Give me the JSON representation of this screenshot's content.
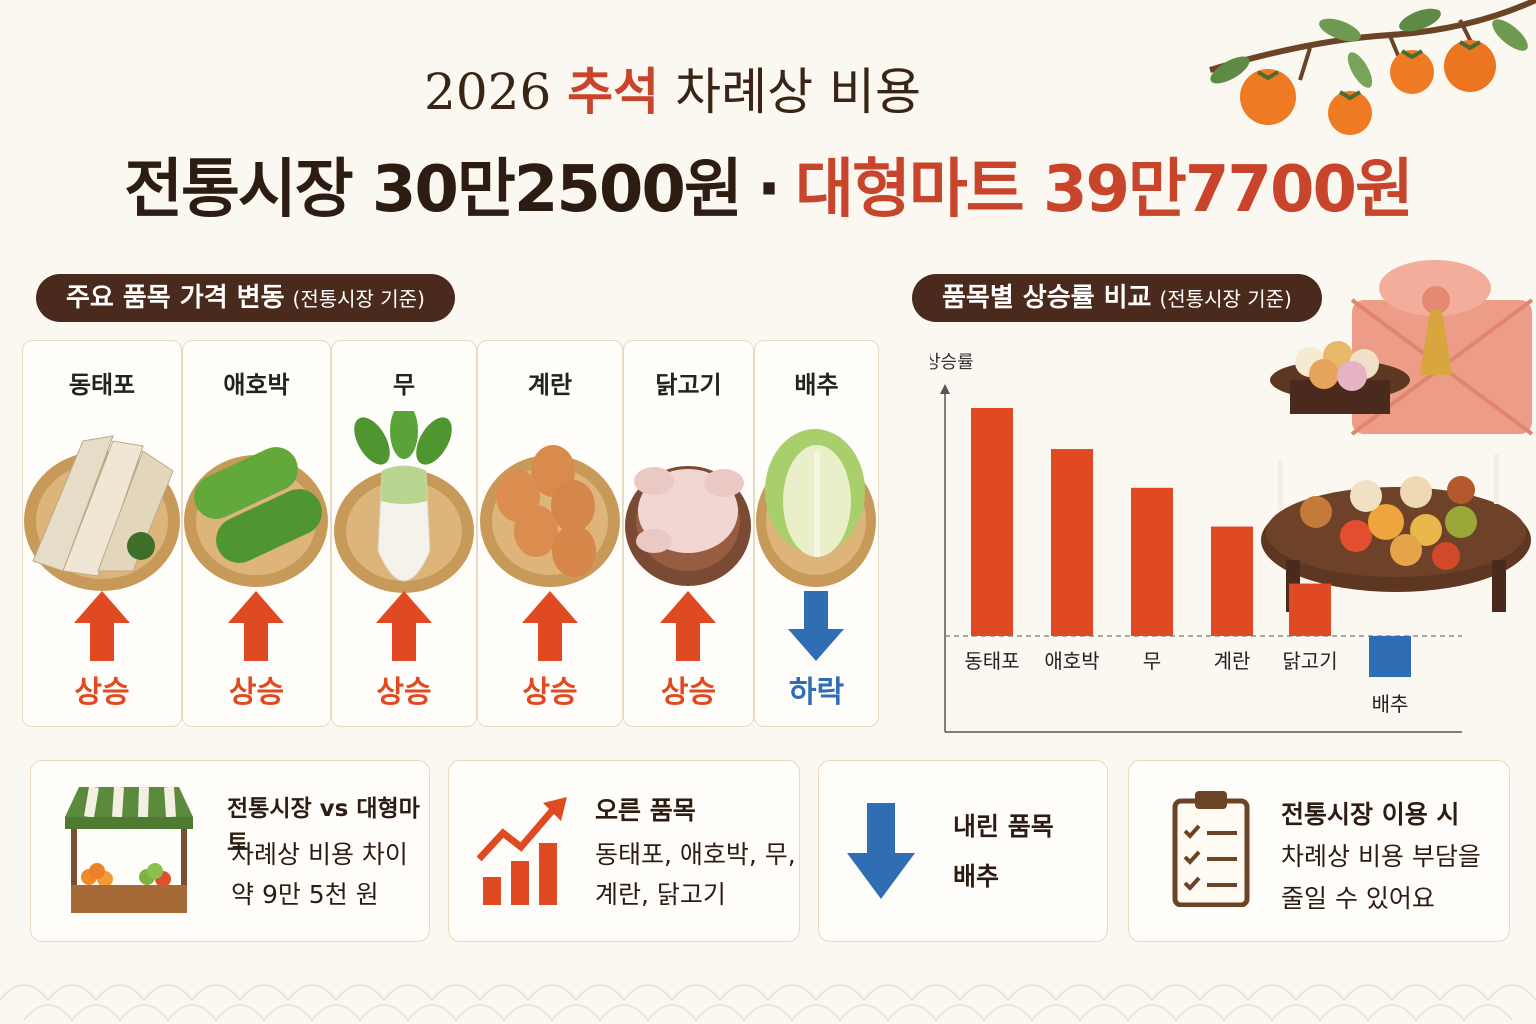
{
  "title": {
    "year": "2026",
    "holiday": "추석",
    "rest": "차례상 비용",
    "traditional": "전통시장 30만2500원",
    "separator": "·",
    "mart": "대형마트 39만7700원"
  },
  "section_items": {
    "label": "주요 품목 가격 변동",
    "note": "(전통시장 기준)"
  },
  "section_chart": {
    "label": "품목별 상승률 비교",
    "note": "(전통시장 기준)"
  },
  "items": [
    {
      "name": "동태포",
      "trend": "상승",
      "direction": "up"
    },
    {
      "name": "애호박",
      "trend": "상승",
      "direction": "up"
    },
    {
      "name": "무",
      "trend": "상승",
      "direction": "up"
    },
    {
      "name": "계란",
      "trend": "상승",
      "direction": "up"
    },
    {
      "name": "닭고기",
      "trend": "상승",
      "direction": "up"
    },
    {
      "name": "배추",
      "trend": "하락",
      "direction": "down"
    }
  ],
  "colors": {
    "up": "#e04a22",
    "down": "#2f6db5",
    "brown": "#4a2a1c",
    "bar": "#e04a22",
    "bar_down": "#2f6db5"
  },
  "chart_data": {
    "type": "bar",
    "ylabel": "상승률",
    "categories": [
      "동태포",
      "애호박",
      "무",
      "계란",
      "닭고기",
      "배추"
    ],
    "values": [
      100,
      82,
      65,
      48,
      23,
      -18
    ],
    "grid": false
  },
  "info_cards": [
    {
      "title": "전통시장 vs 대형마트",
      "lines": [
        "차례상 비용 차이",
        "약 9만 5천 원"
      ],
      "icon": "market-stall-icon"
    },
    {
      "title": "오른 품목",
      "lines": [
        "동태포, 애호박, 무,",
        "계란, 닭고기"
      ],
      "icon": "rising-chart-icon"
    },
    {
      "title": "내린 품목",
      "lines": [
        "배추"
      ],
      "icon": "down-arrow-icon"
    },
    {
      "title": "전통시장 이용 시",
      "lines": [
        "차례상 비용 부담을",
        "줄일 수 있어요"
      ],
      "icon": "checklist-clipboard-icon"
    }
  ]
}
